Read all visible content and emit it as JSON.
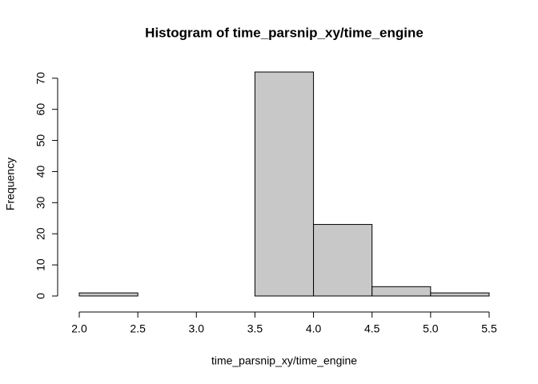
{
  "chart_data": {
    "type": "histogram",
    "title": "Histogram of time_parsnip_xy/time_engine",
    "xlabel": "time_parsnip_xy/time_engine",
    "ylabel": "Frequency",
    "bins": [
      2,
      2.5,
      3,
      3.5,
      4,
      4.5,
      5,
      5.5
    ],
    "values": [
      1,
      0,
      0,
      72,
      23,
      3,
      1
    ],
    "color": "#c8c8c8",
    "xlim": [
      2,
      5.5
    ],
    "xticks": [
      {
        "value": 2,
        "label": "2.0"
      },
      2.5,
      {
        "value": 3,
        "label": "3.0"
      },
      3.5,
      {
        "value": 4,
        "label": "4.0"
      },
      4.5,
      {
        "value": 5,
        "label": "5.0"
      },
      5.5
    ],
    "ylim": [
      0,
      72
    ],
    "yticks": [
      0,
      10,
      20,
      30,
      40,
      50,
      60,
      70
    ]
  }
}
